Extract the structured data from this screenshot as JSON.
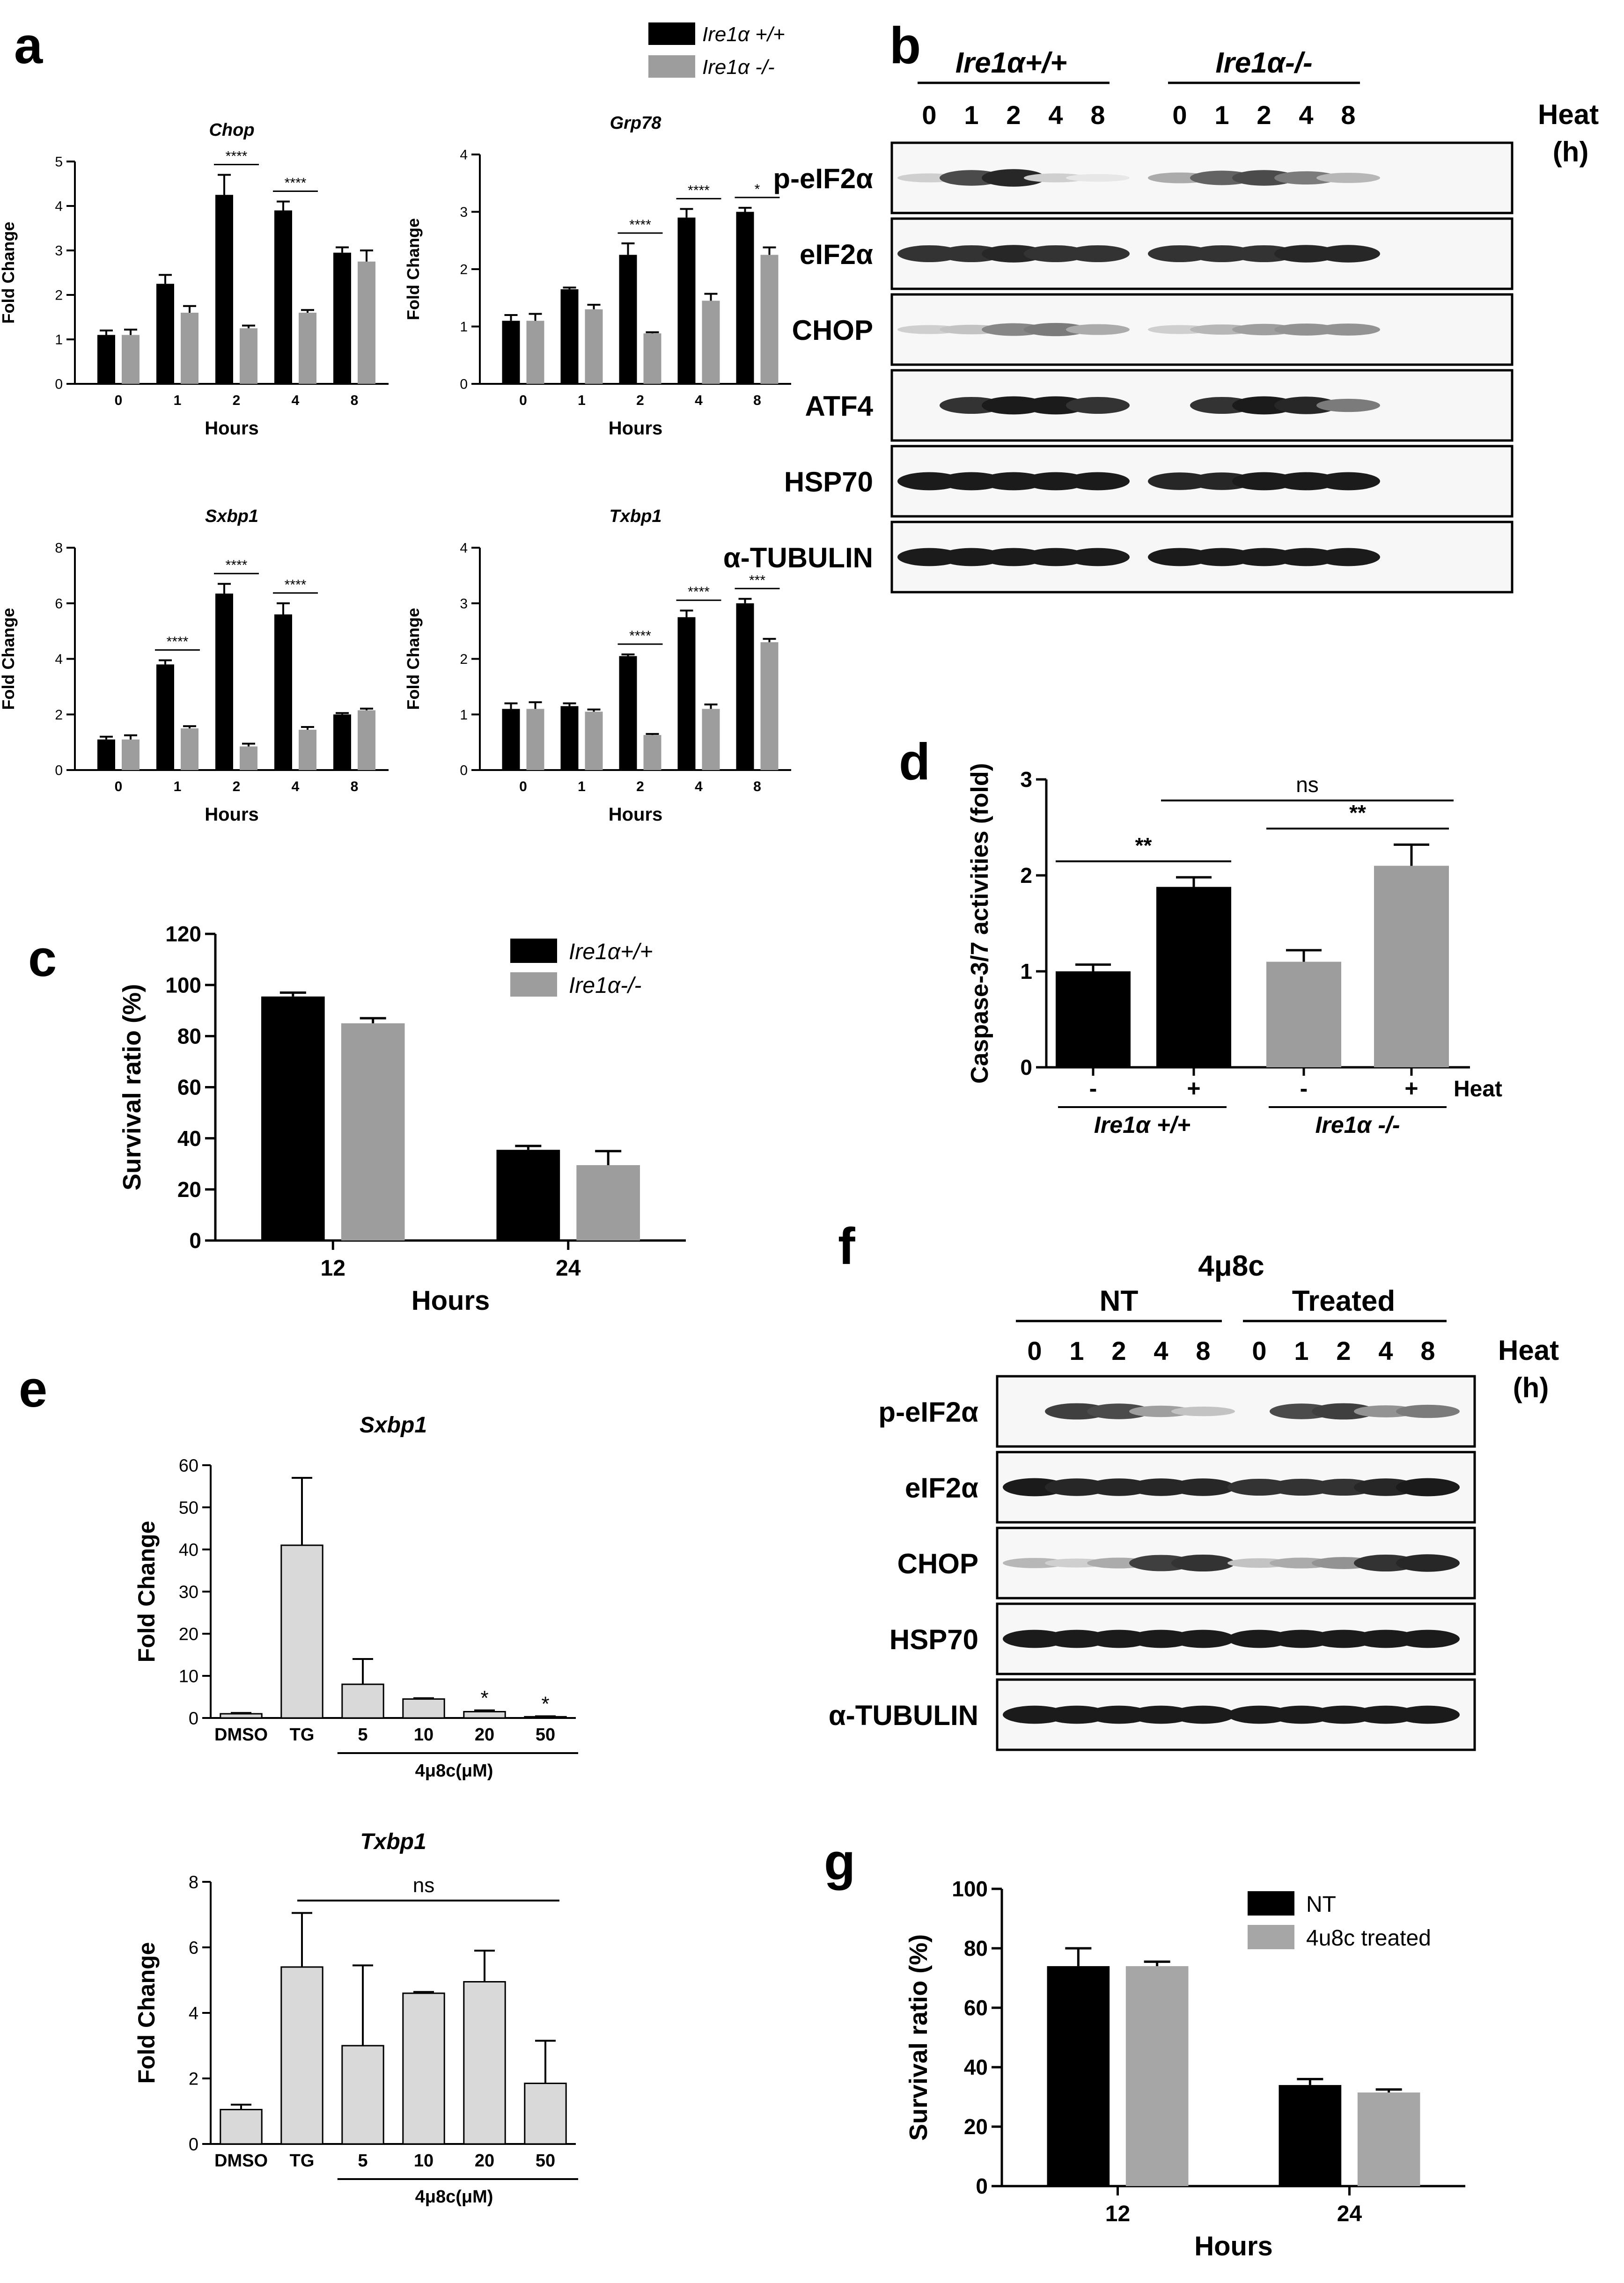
{
  "panel_letters": {
    "a": "a",
    "b": "b",
    "c": "c",
    "d": "d",
    "e": "e",
    "f": "f",
    "g": "g"
  },
  "colors": {
    "wt": "#000000",
    "ko": "#9d9d9d",
    "treated_bar": "#d9d9d9",
    "treated_legend": "#a6a6a6"
  },
  "panel_a_legend": [
    "Ire1α +/+",
    "Ire1α -/-"
  ],
  "blot_b": {
    "group1": "Ire1α+/+",
    "group2": "Ire1α-/-",
    "lanes": [
      "0",
      "1",
      "2",
      "4",
      "8",
      "0",
      "1",
      "2",
      "4",
      "8"
    ],
    "heat": "Heat",
    "heat_unit": "(h)",
    "rows": [
      "p-eIF2α",
      "eIF2α",
      "CHOP",
      "ATF4",
      "HSP70",
      "α-TUBULIN"
    ]
  },
  "blot_f": {
    "compound": "4μ8c",
    "group1": "NT",
    "group2": "Treated",
    "lanes": [
      "0",
      "1",
      "2",
      "4",
      "8",
      "0",
      "1",
      "2",
      "4",
      "8"
    ],
    "heat": "Heat",
    "heat_unit": "(h)",
    "rows": [
      "p-eIF2α",
      "eIF2α",
      "CHOP",
      "HSP70",
      "α-TUBULIN"
    ]
  },
  "chart_data": [
    {
      "id": "a_chop",
      "type": "bar",
      "title": "Chop",
      "xlabel": "Hours",
      "ylabel": "Fold Change",
      "categories": [
        "0",
        "1",
        "2",
        "4",
        "8"
      ],
      "ylim": [
        0,
        5
      ],
      "yticks": [
        "0",
        "1",
        "2",
        "3",
        "4",
        "5"
      ],
      "series": [
        {
          "name": "Ire1α +/+",
          "values": [
            1.1,
            2.25,
            4.25,
            3.9,
            2.95
          ],
          "errors": [
            0.1,
            0.2,
            0.45,
            0.2,
            0.12
          ]
        },
        {
          "name": "Ire1α -/-",
          "values": [
            1.1,
            1.6,
            1.25,
            1.6,
            2.75
          ],
          "errors": [
            0.12,
            0.15,
            0.06,
            0.06,
            0.25
          ]
        }
      ],
      "significance": [
        {
          "category": "2",
          "label": "****"
        },
        {
          "category": "4",
          "label": "****"
        }
      ]
    },
    {
      "id": "a_grp78",
      "type": "bar",
      "title": "Grp78",
      "xlabel": "Hours",
      "ylabel": "Fold Change",
      "categories": [
        "0",
        "1",
        "2",
        "4",
        "8"
      ],
      "ylim": [
        0,
        4
      ],
      "yticks": [
        "0",
        "1",
        "2",
        "3",
        "4"
      ],
      "series": [
        {
          "name": "Ire1α +/+",
          "values": [
            1.1,
            1.65,
            2.25,
            2.9,
            3.0
          ],
          "errors": [
            0.1,
            0.03,
            0.2,
            0.15,
            0.07
          ]
        },
        {
          "name": "Ire1α -/-",
          "values": [
            1.1,
            1.3,
            0.88,
            1.45,
            2.25
          ],
          "errors": [
            0.12,
            0.08,
            0.02,
            0.12,
            0.13
          ]
        }
      ],
      "significance": [
        {
          "category": "2",
          "label": "****"
        },
        {
          "category": "4",
          "label": "****"
        },
        {
          "category": "8",
          "label": "*"
        }
      ]
    },
    {
      "id": "a_sxbp1",
      "type": "bar",
      "title": "Sxbp1",
      "xlabel": "Hours",
      "ylabel": "Fold Change",
      "categories": [
        "0",
        "1",
        "2",
        "4",
        "8"
      ],
      "ylim": [
        0,
        8
      ],
      "yticks": [
        "0",
        "2",
        "4",
        "6",
        "8"
      ],
      "series": [
        {
          "name": "Ire1α +/+",
          "values": [
            1.1,
            3.8,
            6.35,
            5.6,
            2.0
          ],
          "errors": [
            0.1,
            0.15,
            0.35,
            0.4,
            0.05
          ]
        },
        {
          "name": "Ire1α -/-",
          "values": [
            1.1,
            1.5,
            0.85,
            1.45,
            2.15
          ],
          "errors": [
            0.15,
            0.08,
            0.1,
            0.1,
            0.06
          ]
        }
      ],
      "significance": [
        {
          "category": "1",
          "label": "****"
        },
        {
          "category": "2",
          "label": "****"
        },
        {
          "category": "4",
          "label": "****"
        }
      ]
    },
    {
      "id": "a_txbp1",
      "type": "bar",
      "title": "Txbp1",
      "xlabel": "Hours",
      "ylabel": "Fold Change",
      "categories": [
        "0",
        "1",
        "2",
        "4",
        "8"
      ],
      "ylim": [
        0,
        4
      ],
      "yticks": [
        "0",
        "1",
        "2",
        "3",
        "4"
      ],
      "series": [
        {
          "name": "Ire1α +/+",
          "values": [
            1.1,
            1.15,
            2.05,
            2.75,
            3.0
          ],
          "errors": [
            0.1,
            0.05,
            0.03,
            0.12,
            0.08
          ]
        },
        {
          "name": "Ire1α -/-",
          "values": [
            1.1,
            1.05,
            0.63,
            1.1,
            2.3
          ],
          "errors": [
            0.12,
            0.04,
            0.02,
            0.08,
            0.06
          ]
        }
      ],
      "significance": [
        {
          "category": "2",
          "label": "****"
        },
        {
          "category": "4",
          "label": "****"
        },
        {
          "category": "8",
          "label": "***"
        }
      ]
    },
    {
      "id": "c",
      "type": "bar",
      "xlabel": "Hours",
      "ylabel": "Survival ratio (%)",
      "categories": [
        "12",
        "24"
      ],
      "ylim": [
        0,
        120
      ],
      "yticks": [
        "0",
        "20",
        "40",
        "60",
        "80",
        "100",
        "120"
      ],
      "series": [
        {
          "name": "Ire1α+/+",
          "values": [
            95.5,
            35.5
          ],
          "errors": [
            1.5,
            1.5
          ]
        },
        {
          "name": "Ire1α-/-",
          "values": [
            85.0,
            29.5
          ],
          "errors": [
            2.0,
            5.5
          ]
        }
      ],
      "legend": "top-right"
    },
    {
      "id": "d",
      "type": "bar",
      "ylabel": "Caspase-3/7 activities (fold)",
      "categories": [
        "-",
        "+",
        "-",
        "+"
      ],
      "category_colors": [
        "wt",
        "wt",
        "ko",
        "ko"
      ],
      "values": [
        1.0,
        1.88,
        1.1,
        2.1
      ],
      "errors": [
        0.07,
        0.1,
        0.12,
        0.22
      ],
      "ylim": [
        0,
        3
      ],
      "yticks": [
        "0",
        "1",
        "2",
        "3"
      ],
      "xcaption": "Heat",
      "groups": [
        "Ire1α +/+",
        "Ire1α -/-"
      ],
      "significance": [
        {
          "from": 0,
          "to": 1,
          "label": "**"
        },
        {
          "from": 2,
          "to": 3,
          "label": "**"
        },
        {
          "from": 1,
          "to": 3,
          "label": "ns"
        }
      ]
    },
    {
      "id": "e_sxbp1",
      "type": "bar",
      "title": "Sxbp1",
      "ylabel": "Fold Change",
      "categories": [
        "DMSO",
        "TG",
        "5",
        "10",
        "20",
        "50"
      ],
      "values": [
        1.0,
        41.0,
        8.0,
        4.5,
        1.5,
        0.3
      ],
      "errors": [
        0.2,
        16.0,
        6.0,
        0.2,
        0.3,
        0.1
      ],
      "ylim": [
        0,
        60
      ],
      "yticks": [
        "0",
        "10",
        "20",
        "30",
        "40",
        "50",
        "60"
      ],
      "group_label": "4μ8c(μM)",
      "significance": [
        {
          "category": "20",
          "label": "*"
        },
        {
          "category": "50",
          "label": "*"
        }
      ]
    },
    {
      "id": "e_txbp1",
      "type": "bar",
      "title": "Txbp1",
      "ylabel": "Fold Change",
      "categories": [
        "DMSO",
        "TG",
        "5",
        "10",
        "20",
        "50"
      ],
      "values": [
        1.05,
        5.4,
        3.0,
        4.6,
        4.95,
        1.85
      ],
      "errors": [
        0.15,
        1.65,
        2.45,
        0.04,
        0.95,
        1.3
      ],
      "ylim": [
        0,
        8
      ],
      "yticks": [
        "0",
        "2",
        "4",
        "6",
        "8"
      ],
      "group_label": "4μ8c(μM)",
      "significance": [
        {
          "from": 1,
          "to": 5,
          "label": "ns"
        }
      ]
    },
    {
      "id": "g",
      "type": "bar",
      "xlabel": "Hours",
      "ylabel": "Survival ratio (%)",
      "categories": [
        "12",
        "24"
      ],
      "ylim": [
        0,
        100
      ],
      "yticks": [
        "0",
        "20",
        "40",
        "60",
        "80",
        "100"
      ],
      "series": [
        {
          "name": "NT",
          "values": [
            74.0,
            34.0
          ],
          "errors": [
            6.0,
            2.0
          ]
        },
        {
          "name": "4u8c treated",
          "values": [
            74.0,
            31.5
          ],
          "errors": [
            1.5,
            1.0
          ]
        }
      ],
      "legend": "top-right"
    }
  ]
}
